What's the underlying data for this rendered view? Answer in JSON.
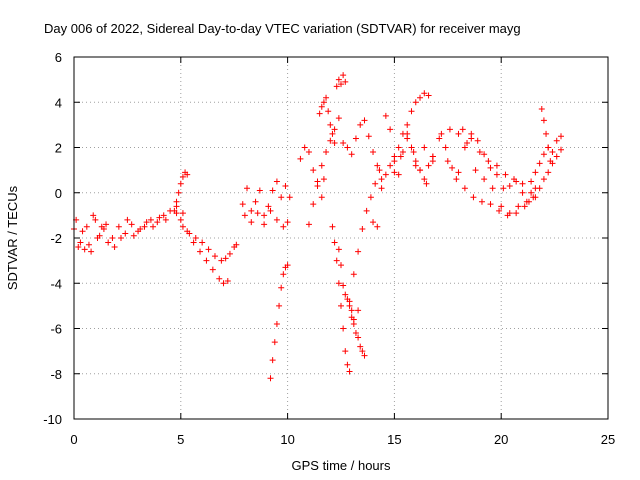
{
  "chart_data": {
    "type": "scatter",
    "title": "Day 006 of 2022, Sidereal Day-to-day VTEC variation (SDTVAR) for receiver mayg",
    "xlabel": "GPS time / hours",
    "ylabel": "SDTVAR / TECUs",
    "xlim": [
      0,
      25
    ],
    "ylim": [
      -10,
      6
    ],
    "xticks": [
      0,
      5,
      10,
      15,
      20,
      25
    ],
    "yticks": [
      -10,
      -8,
      -6,
      -4,
      -2,
      0,
      2,
      4,
      6
    ],
    "grid": true,
    "marker": "+",
    "color": "#ff0000",
    "series": [
      {
        "name": "SDTVAR",
        "segments": [
          {
            "x": [
              0.0,
              0.3,
              0.6,
              0.9,
              1.2,
              1.5,
              1.8,
              2.1,
              2.4,
              2.7,
              3.0,
              3.3,
              3.6,
              3.9,
              4.2,
              4.5,
              4.8,
              5.1
            ],
            "y": [
              -1.6,
              -2.2,
              -1.5,
              -1.0,
              -1.9,
              -1.4,
              -2.0,
              -1.5,
              -1.8,
              -1.4,
              -1.7,
              -1.5,
              -1.2,
              -1.3,
              -1.0,
              -0.8,
              -0.6,
              -0.9
            ]
          },
          {
            "x": [
              0.1,
              0.4,
              0.7,
              1.0,
              1.3,
              1.6,
              1.9,
              2.2,
              2.5,
              2.8,
              3.1,
              3.4,
              3.7,
              4.0,
              4.3
            ],
            "y": [
              -1.2,
              -1.7,
              -2.3,
              -1.2,
              -1.5,
              -2.2,
              -2.4,
              -2.0,
              -1.2,
              -1.9,
              -1.6,
              -1.3,
              -1.5,
              -1.1,
              -1.2
            ]
          },
          {
            "x": [
              0.2,
              0.5,
              0.8,
              1.1,
              1.4
            ],
            "y": [
              -2.4,
              -2.5,
              -2.6,
              -2.0,
              -1.6
            ]
          },
          {
            "x": [
              4.7,
              4.8,
              4.9,
              5.0,
              5.1,
              5.2,
              5.3
            ],
            "y": [
              -0.8,
              -0.4,
              0.0,
              0.4,
              0.7,
              0.9,
              0.8
            ]
          },
          {
            "x": [
              4.8,
              5.1,
              5.4,
              5.7,
              6.0,
              6.3,
              6.6,
              6.9,
              7.1,
              7.3,
              7.5,
              7.6
            ],
            "y": [
              -0.9,
              -1.5,
              -1.8,
              -2.0,
              -2.2,
              -2.5,
              -2.8,
              -3.0,
              -2.9,
              -2.7,
              -2.4,
              -2.3
            ]
          },
          {
            "x": [
              5.0,
              5.3,
              5.6,
              5.9,
              6.2,
              6.5,
              6.8,
              7.0,
              7.2
            ],
            "y": [
              -1.2,
              -1.7,
              -2.2,
              -2.6,
              -3.0,
              -3.4,
              -3.8,
              -4.0,
              -3.9
            ]
          },
          {
            "x": [
              7.9,
              8.1,
              8.3,
              8.5,
              8.7,
              8.9,
              9.1,
              9.3,
              9.5,
              9.7,
              9.9,
              10.1
            ],
            "y": [
              -0.5,
              0.2,
              -0.8,
              -0.4,
              0.1,
              -1.0,
              -0.6,
              0.1,
              0.5,
              -0.2,
              0.3,
              -0.2
            ]
          },
          {
            "x": [
              8.0,
              8.3,
              8.6,
              8.9,
              9.2,
              9.5,
              9.8,
              10.0
            ],
            "y": [
              -1.0,
              -1.3,
              -0.9,
              -1.4,
              -0.8,
              -1.2,
              -1.5,
              -1.3
            ]
          },
          {
            "x": [
              9.2,
              9.3,
              9.4,
              9.5,
              9.6,
              9.7,
              9.8,
              9.9,
              10.0
            ],
            "y": [
              -8.2,
              -7.4,
              -6.6,
              -5.8,
              -5.0,
              -4.2,
              -3.6,
              -3.3,
              -3.2
            ]
          },
          {
            "x": [
              10.6,
              10.8,
              11.0,
              11.2,
              11.4,
              11.6,
              11.7
            ],
            "y": [
              1.5,
              2.0,
              1.8,
              1.0,
              0.3,
              -0.2,
              0.6
            ]
          },
          {
            "x": [
              11.5,
              11.6,
              11.7,
              11.8,
              11.9,
              12.0,
              12.1,
              12.2,
              12.3,
              12.4,
              12.5,
              12.6,
              12.7
            ],
            "y": [
              3.5,
              3.8,
              4.0,
              4.2,
              3.6,
              3.0,
              2.6,
              2.2,
              4.7,
              5.0,
              4.8,
              5.2,
              4.9
            ]
          },
          {
            "x": [
              11.0,
              11.2,
              11.4,
              11.6,
              11.8,
              12.0,
              12.2,
              12.4,
              12.6,
              12.8,
              13.0
            ],
            "y": [
              -1.4,
              -0.5,
              0.5,
              1.2,
              1.8,
              2.3,
              2.8,
              3.3,
              2.2,
              2.0,
              1.7
            ]
          },
          {
            "x": [
              12.1,
              12.2,
              12.3,
              12.4,
              12.5,
              12.6,
              12.7,
              12.8,
              12.9,
              13.0,
              13.1,
              13.2,
              13.3
            ],
            "y": [
              -1.5,
              -2.2,
              -3.0,
              -4.0,
              -5.0,
              -6.0,
              -7.0,
              -7.6,
              -7.9,
              -5.5,
              -5.8,
              -6.2,
              -5.2
            ]
          },
          {
            "x": [
              12.4,
              12.5,
              12.6,
              12.7,
              12.8,
              12.9,
              13.0,
              13.1
            ],
            "y": [
              -2.5,
              -3.2,
              -4.1,
              -4.5,
              -4.7,
              -5.0,
              -5.2,
              -5.6
            ]
          },
          {
            "x": [
              13.3,
              13.4,
              13.5,
              13.6
            ],
            "y": [
              -6.4,
              -6.8,
              -7.0,
              -7.2
            ]
          },
          {
            "x": [
              12.9,
              13.1,
              13.3,
              13.5,
              13.7,
              13.9,
              14.1,
              14.3
            ],
            "y": [
              -4.8,
              -3.6,
              -2.6,
              -1.6,
              -0.8,
              -0.2,
              0.4,
              1.0
            ]
          },
          {
            "x": [
              13.2,
              13.4,
              13.6,
              13.8,
              14.0,
              14.2,
              14.4
            ],
            "y": [
              2.4,
              3.0,
              3.2,
              2.5,
              1.8,
              1.2,
              0.6
            ]
          },
          {
            "x": [
              14.0,
              14.2,
              14.4,
              14.6,
              14.8,
              15.0,
              15.2,
              15.4,
              15.6,
              15.8,
              16.0,
              16.2,
              16.4,
              16.6
            ],
            "y": [
              -1.3,
              -1.5,
              0.2,
              0.8,
              1.2,
              1.6,
              2.0,
              2.6,
              3.0,
              3.6,
              4.0,
              4.2,
              4.4,
              4.3
            ]
          },
          {
            "x": [
              14.6,
              14.8,
              15.0,
              15.2,
              15.4,
              15.6,
              15.8,
              16.0,
              16.2,
              16.4,
              16.6,
              16.8
            ],
            "y": [
              3.4,
              2.8,
              1.4,
              0.8,
              1.8,
              2.4,
              2.0,
              1.4,
              1.0,
              0.6,
              1.2,
              1.6
            ]
          },
          {
            "x": [
              15.0,
              15.3,
              15.6,
              15.9,
              16.2,
              16.5,
              16.8,
              17.1,
              17.4,
              17.7,
              18.0,
              18.3,
              18.6,
              18.9,
              19.2,
              19.5,
              19.8,
              20.1,
              20.4,
              20.7,
              21.0,
              21.3,
              21.6
            ],
            "y": [
              0.9,
              1.6,
              2.6,
              1.8,
              1.0,
              0.4,
              1.4,
              2.4,
              2.0,
              1.1,
              0.9,
              2.0,
              2.6,
              2.3,
              1.7,
              1.1,
              0.8,
              0.2,
              0.3,
              0.5,
              0.0,
              -0.4,
              0.2
            ]
          },
          {
            "x": [
              16.0,
              16.4,
              16.8,
              17.2,
              17.6,
              18.0,
              18.4,
              18.8,
              19.2,
              19.6,
              20.0,
              20.4,
              20.8,
              21.2
            ],
            "y": [
              1.2,
              2.0,
              1.6,
              2.6,
              2.8,
              2.6,
              2.2,
              1.0,
              0.6,
              0.2,
              -0.6,
              -0.9,
              -0.6,
              -0.4
            ]
          },
          {
            "x": [
              17.5,
              17.9,
              18.3,
              18.7,
              19.1,
              19.5,
              19.9,
              20.3,
              20.7,
              21.1,
              21.5
            ],
            "y": [
              1.4,
              0.6,
              0.2,
              -0.2,
              -0.4,
              -0.5,
              -0.8,
              -1.0,
              -0.9,
              -0.6,
              -0.2
            ]
          },
          {
            "x": [
              18.2,
              18.6,
              19.0,
              19.4,
              19.8,
              20.2,
              20.6,
              21.0,
              21.4
            ],
            "y": [
              2.8,
              2.4,
              1.8,
              1.4,
              1.2,
              0.8,
              0.6,
              0.4,
              0.0
            ]
          },
          {
            "x": [
              21.4,
              21.6,
              21.8,
              22.0,
              22.2,
              22.4,
              22.6,
              22.8
            ],
            "y": [
              0.5,
              0.9,
              1.3,
              1.7,
              2.0,
              1.8,
              2.3,
              2.5
            ]
          },
          {
            "x": [
              21.9,
              22.0,
              22.1,
              22.2,
              22.3
            ],
            "y": [
              3.7,
              3.2,
              2.6,
              2.0,
              1.4
            ]
          },
          {
            "x": [
              21.6,
              21.8,
              22.0,
              22.2,
              22.4,
              22.6,
              22.8
            ],
            "y": [
              -0.2,
              0.2,
              0.6,
              0.9,
              1.3,
              1.6,
              1.9
            ]
          }
        ]
      }
    ]
  }
}
